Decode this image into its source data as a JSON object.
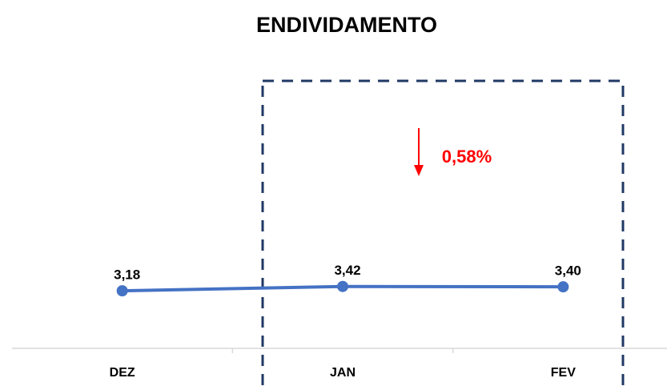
{
  "chart_data": {
    "type": "line",
    "title": "ENDIVIDAMENTO",
    "categories": [
      "DEZ",
      "JAN",
      "FEV"
    ],
    "series": [
      {
        "name": "Endividamento",
        "color": "#4472c4",
        "values": [
          3.18,
          3.42,
          3.4
        ],
        "value_labels": [
          "3,18",
          "3,42",
          "3,40"
        ]
      }
    ],
    "ylim": [
      0,
      15
    ],
    "annotation": "0,58%",
    "annotation_color": "#ff0000"
  }
}
